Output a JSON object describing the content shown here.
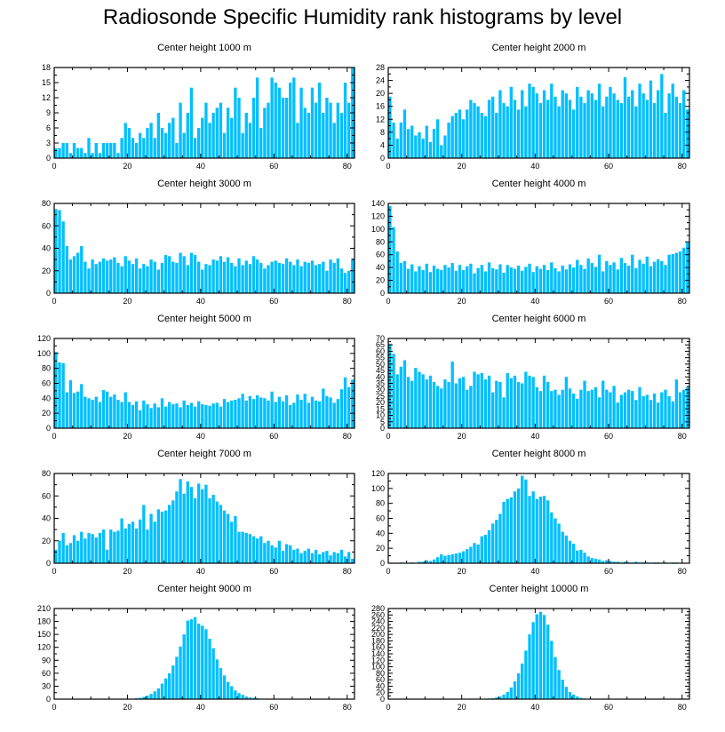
{
  "title": "Radiosonde Specific Humidity rank histograms by level",
  "bar_color": "#00bfff",
  "chart_data": [
    {
      "type": "bar",
      "title": "Center height 1000 m",
      "xlim": [
        0,
        82
      ],
      "ylim": [
        0,
        18
      ],
      "xticks": [
        0,
        20,
        40,
        60,
        80
      ],
      "yticks": [
        0,
        3,
        6,
        9,
        12,
        15,
        18
      ],
      "values": [
        2,
        2,
        3,
        3,
        1,
        3,
        2,
        2,
        1,
        4,
        1,
        3,
        1,
        3,
        3,
        3,
        3,
        1,
        4,
        7,
        6,
        4,
        3,
        5,
        4,
        6,
        7,
        4,
        9,
        6,
        5,
        7,
        8,
        3,
        11,
        5,
        9,
        14,
        4,
        6,
        8,
        11,
        7,
        9,
        10,
        11,
        5,
        10,
        8,
        14,
        12,
        5,
        9,
        7,
        12,
        16,
        6,
        10,
        11,
        16,
        15,
        14,
        12,
        12,
        15,
        16,
        7,
        14,
        10,
        9,
        14,
        11,
        15,
        9,
        12,
        11,
        7,
        11,
        9,
        15,
        11,
        18
      ]
    },
    {
      "type": "bar",
      "title": "Center height 2000 m",
      "xlim": [
        0,
        82
      ],
      "ylim": [
        0,
        28
      ],
      "xticks": [
        0,
        20,
        40,
        60,
        80
      ],
      "yticks": [
        0,
        4,
        8,
        12,
        16,
        20,
        24,
        28
      ],
      "values": [
        19,
        11,
        6,
        11,
        15,
        9,
        10,
        7,
        8,
        6,
        10,
        5,
        9,
        12,
        4,
        7,
        11,
        13,
        14,
        15,
        12,
        15,
        18,
        17,
        16,
        14,
        13,
        18,
        19,
        14,
        21,
        17,
        16,
        22,
        18,
        15,
        21,
        16,
        23,
        22,
        20,
        17,
        21,
        18,
        23,
        19,
        16,
        21,
        20,
        18,
        15,
        22,
        19,
        17,
        21,
        20,
        18,
        23,
        16,
        19,
        22,
        20,
        18,
        17,
        25,
        19,
        21,
        16,
        23,
        20,
        18,
        24,
        17,
        21,
        26,
        14,
        20,
        23,
        19,
        17,
        21,
        15
      ]
    },
    {
      "type": "bar",
      "title": "Center height 3000 m",
      "xlim": [
        0,
        82
      ],
      "ylim": [
        0,
        80
      ],
      "xticks": [
        0,
        20,
        40,
        60,
        80
      ],
      "yticks": [
        0,
        20,
        40,
        60,
        80
      ],
      "values": [
        75,
        74,
        64,
        42,
        30,
        33,
        36,
        42,
        28,
        22,
        30,
        26,
        28,
        31,
        29,
        30,
        32,
        27,
        24,
        33,
        29,
        26,
        31,
        22,
        26,
        24,
        30,
        28,
        21,
        27,
        34,
        33,
        28,
        27,
        36,
        33,
        25,
        36,
        34,
        28,
        21,
        26,
        25,
        30,
        29,
        33,
        28,
        32,
        27,
        24,
        31,
        25,
        29,
        26,
        33,
        30,
        27,
        22,
        25,
        28,
        29,
        27,
        26,
        31,
        28,
        25,
        30,
        24,
        28,
        27,
        29,
        25,
        26,
        28,
        20,
        30,
        27,
        31,
        22,
        18,
        20,
        31
      ]
    },
    {
      "type": "bar",
      "title": "Center height 4000 m",
      "xlim": [
        0,
        82
      ],
      "ylim": [
        0,
        140
      ],
      "xticks": [
        0,
        20,
        40,
        60,
        80
      ],
      "yticks": [
        0,
        20,
        40,
        60,
        80,
        100,
        120,
        140
      ],
      "values": [
        136,
        103,
        65,
        47,
        50,
        38,
        45,
        34,
        42,
        36,
        46,
        33,
        43,
        38,
        36,
        44,
        40,
        47,
        35,
        44,
        36,
        42,
        46,
        31,
        39,
        44,
        34,
        48,
        39,
        37,
        45,
        32,
        44,
        40,
        38,
        43,
        35,
        41,
        46,
        33,
        42,
        38,
        44,
        36,
        48,
        39,
        34,
        43,
        37,
        45,
        40,
        52,
        44,
        38,
        54,
        47,
        41,
        60,
        34,
        50,
        44,
        48,
        37,
        55,
        47,
        43,
        60,
        39,
        52,
        46,
        57,
        42,
        49,
        53,
        50,
        44,
        60,
        61,
        63,
        65,
        71,
        79
      ]
    },
    {
      "type": "bar",
      "title": "Center height 5000 m",
      "xlim": [
        0,
        82
      ],
      "ylim": [
        0,
        120
      ],
      "xticks": [
        0,
        20,
        40,
        60,
        80
      ],
      "yticks": [
        0,
        20,
        40,
        60,
        80,
        100,
        120
      ],
      "values": [
        102,
        88,
        87,
        48,
        64,
        47,
        49,
        59,
        42,
        40,
        38,
        42,
        35,
        51,
        49,
        42,
        45,
        38,
        35,
        48,
        35,
        31,
        36,
        24,
        37,
        32,
        27,
        33,
        28,
        40,
        29,
        35,
        32,
        33,
        28,
        37,
        31,
        34,
        29,
        36,
        32,
        31,
        30,
        33,
        34,
        29,
        39,
        35,
        37,
        38,
        40,
        46,
        37,
        43,
        39,
        44,
        41,
        40,
        37,
        49,
        35,
        42,
        36,
        44,
        31,
        34,
        45,
        38,
        46,
        34,
        42,
        37,
        36,
        53,
        43,
        41,
        34,
        39,
        52,
        68,
        55,
        65
      ]
    },
    {
      "type": "bar",
      "title": "Center height 6000 m",
      "xlim": [
        0,
        82
      ],
      "ylim": [
        0,
        70
      ],
      "xticks": [
        0,
        20,
        40,
        60,
        80
      ],
      "yticks": [
        0,
        5,
        10,
        15,
        20,
        25,
        30,
        35,
        40,
        45,
        50,
        55,
        60,
        65,
        70
      ],
      "values": [
        66,
        58,
        42,
        48,
        53,
        40,
        37,
        47,
        44,
        42,
        38,
        41,
        36,
        33,
        31,
        38,
        36,
        52,
        35,
        39,
        40,
        30,
        33,
        44,
        42,
        43,
        38,
        41,
        28,
        37,
        36,
        24,
        43,
        39,
        41,
        36,
        35,
        44,
        41,
        40,
        32,
        29,
        41,
        36,
        29,
        30,
        26,
        30,
        40,
        31,
        27,
        23,
        30,
        37,
        29,
        30,
        32,
        24,
        37,
        30,
        28,
        33,
        20,
        26,
        28,
        30,
        29,
        22,
        32,
        25,
        26,
        22,
        27,
        20,
        28,
        30,
        25,
        21,
        38,
        28,
        30,
        32
      ]
    },
    {
      "type": "bar",
      "title": "Center height 7000 m",
      "xlim": [
        0,
        82
      ],
      "ylim": [
        0,
        80
      ],
      "xticks": [
        0,
        20,
        40,
        60,
        80
      ],
      "yticks": [
        0,
        20,
        40,
        60,
        80
      ],
      "values": [
        12,
        20,
        27,
        16,
        18,
        25,
        20,
        28,
        22,
        27,
        26,
        23,
        27,
        30,
        12,
        30,
        28,
        29,
        40,
        31,
        35,
        37,
        31,
        39,
        52,
        30,
        44,
        37,
        48,
        46,
        47,
        52,
        56,
        64,
        75,
        62,
        73,
        68,
        58,
        71,
        66,
        70,
        58,
        61,
        55,
        52,
        47,
        44,
        37,
        42,
        28,
        28,
        27,
        26,
        24,
        22,
        24,
        18,
        20,
        16,
        14,
        20,
        11,
        17,
        16,
        12,
        13,
        9,
        11,
        13,
        9,
        12,
        8,
        10,
        11,
        7,
        10,
        9,
        12,
        6,
        10,
        4
      ]
    },
    {
      "type": "bar",
      "title": "Center height 8000 m",
      "xlim": [
        0,
        82
      ],
      "ylim": [
        0,
        120
      ],
      "xticks": [
        0,
        20,
        40,
        60,
        80
      ],
      "yticks": [
        0,
        20,
        40,
        60,
        80,
        100,
        120
      ],
      "values": [
        0,
        0,
        0,
        1,
        0,
        0,
        1,
        0,
        2,
        2,
        4,
        3,
        5,
        8,
        12,
        10,
        11,
        12,
        13,
        14,
        16,
        19,
        22,
        27,
        25,
        36,
        38,
        44,
        53,
        58,
        66,
        82,
        86,
        88,
        96,
        100,
        117,
        112,
        90,
        96,
        86,
        89,
        90,
        84,
        68,
        60,
        53,
        42,
        37,
        30,
        26,
        17,
        18,
        14,
        9,
        7,
        6,
        5,
        3,
        4,
        3,
        2,
        2,
        1,
        2,
        1,
        1,
        2,
        1,
        1,
        1,
        0,
        1,
        1,
        0,
        1,
        0,
        1,
        1,
        0,
        0,
        0
      ]
    },
    {
      "type": "bar",
      "title": "Center height 9000 m",
      "xlim": [
        0,
        82
      ],
      "ylim": [
        0,
        210
      ],
      "xticks": [
        0,
        20,
        40,
        60,
        80
      ],
      "yticks": [
        0,
        30,
        60,
        90,
        120,
        150,
        180,
        210
      ],
      "values": [
        0,
        0,
        0,
        0,
        0,
        0,
        0,
        0,
        0,
        0,
        0,
        0,
        0,
        0,
        0,
        0,
        0,
        0,
        0,
        0,
        1,
        1,
        2,
        3,
        5,
        8,
        12,
        18,
        25,
        36,
        48,
        60,
        78,
        98,
        122,
        150,
        182,
        185,
        190,
        175,
        170,
        162,
        140,
        118,
        92,
        72,
        55,
        40,
        30,
        20,
        14,
        10,
        6,
        4,
        3,
        2,
        1,
        1,
        1,
        0,
        0,
        0,
        0,
        0,
        0,
        0,
        0,
        0,
        0,
        0,
        0,
        0,
        0,
        0,
        0,
        0,
        0,
        0,
        0,
        0,
        0,
        0
      ]
    },
    {
      "type": "bar",
      "title": "Center height 10000 m",
      "xlim": [
        0,
        82
      ],
      "ylim": [
        0,
        280
      ],
      "xticks": [
        0,
        20,
        40,
        60,
        80
      ],
      "yticks": [
        0,
        20,
        40,
        60,
        80,
        100,
        120,
        140,
        160,
        180,
        200,
        220,
        240,
        260,
        280
      ],
      "values": [
        0,
        0,
        0,
        0,
        0,
        0,
        0,
        0,
        0,
        0,
        0,
        0,
        0,
        0,
        0,
        0,
        0,
        0,
        0,
        0,
        0,
        0,
        0,
        0,
        0,
        0,
        1,
        2,
        3,
        5,
        8,
        14,
        22,
        36,
        55,
        80,
        110,
        150,
        200,
        238,
        262,
        270,
        260,
        230,
        180,
        130,
        90,
        60,
        38,
        22,
        14,
        8,
        4,
        2,
        1,
        0,
        0,
        0,
        0,
        0,
        0,
        0,
        0,
        0,
        0,
        0,
        0,
        0,
        0,
        0,
        0,
        0,
        0,
        0,
        0,
        0,
        0,
        0,
        0,
        0,
        0,
        0
      ]
    }
  ]
}
